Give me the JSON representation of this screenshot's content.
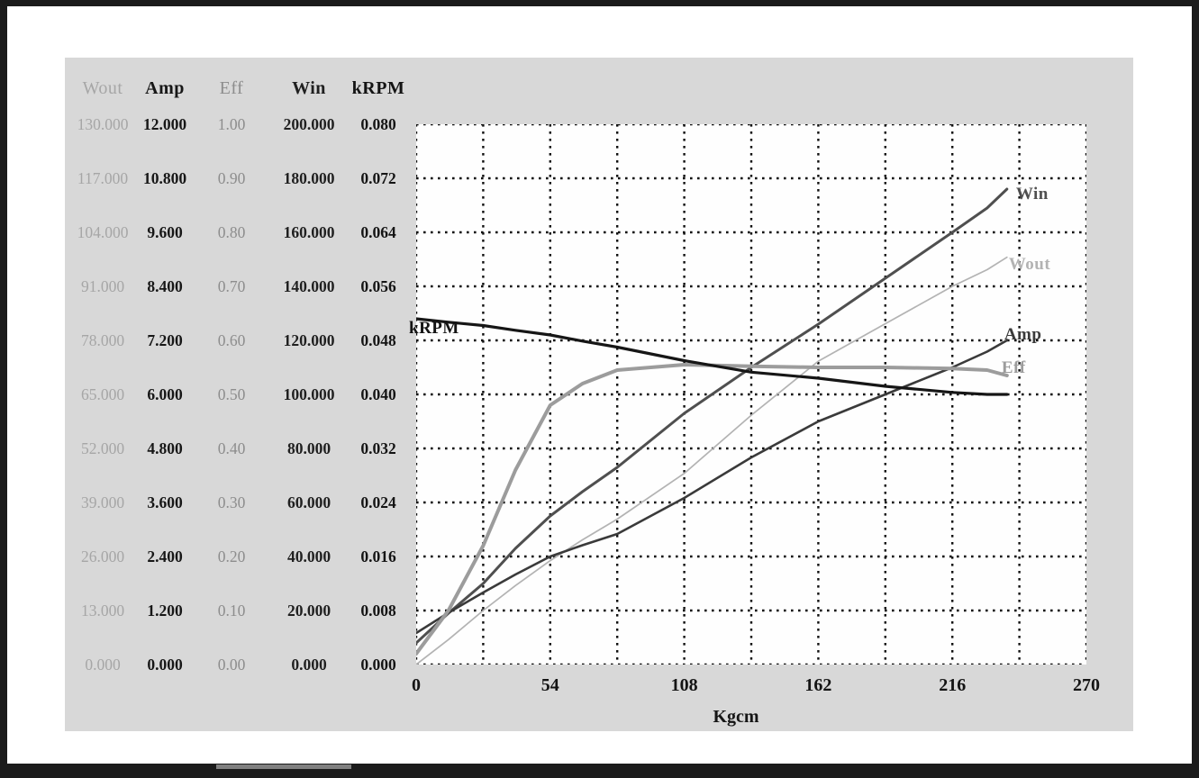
{
  "window": {
    "background": "#ffffff",
    "frame_color": "#1b1b1b",
    "panel_color": "#d8d8d8",
    "plot_background": "#fefefe",
    "grid_color": "#101010"
  },
  "chart_data": {
    "type": "line",
    "title": "",
    "xlabel": "Kgcm",
    "x_range": [
      0,
      270
    ],
    "x_ticks": [
      "0",
      "54",
      "108",
      "162",
      "216",
      "270"
    ],
    "grid": "dotted, 10 x 10 divisions",
    "legend_position": "labels at curve ends",
    "y_axes": [
      {
        "name": "Wout",
        "max": 130,
        "text_color": "#a6a6a6",
        "bold": false,
        "ticks": [
          "130.000",
          "117.000",
          "104.000",
          "91.000",
          "78.000",
          "65.000",
          "52.000",
          "39.000",
          "26.000",
          "13.000",
          "0.000"
        ]
      },
      {
        "name": "Amp",
        "max": 12,
        "text_color": "#171717",
        "bold": true,
        "ticks": [
          "12.000",
          "10.800",
          "9.600",
          "8.400",
          "7.200",
          "6.000",
          "4.800",
          "3.600",
          "2.400",
          "1.200",
          "0.000"
        ]
      },
      {
        "name": "Eff",
        "max": 1.0,
        "text_color": "#8d8d8d",
        "bold": false,
        "ticks": [
          "1.00",
          "0.90",
          "0.80",
          "0.70",
          "0.60",
          "0.50",
          "0.40",
          "0.30",
          "0.20",
          "0.10",
          "0.00"
        ]
      },
      {
        "name": "Win",
        "max": 200,
        "text_color": "#202020",
        "bold": true,
        "ticks": [
          "200.000",
          "180.000",
          "160.000",
          "140.000",
          "120.000",
          "100.000",
          "80.000",
          "60.000",
          "40.000",
          "20.000",
          "0.000"
        ]
      },
      {
        "name": "kRPM",
        "max": 0.08,
        "text_color": "#141414",
        "bold": true,
        "ticks": [
          "0.080",
          "0.072",
          "0.064",
          "0.056",
          "0.048",
          "0.040",
          "0.032",
          "0.024",
          "0.016",
          "0.008",
          "0.000"
        ]
      }
    ],
    "x": [
      0,
      13,
      27,
      40,
      54,
      67,
      81,
      108,
      135,
      162,
      189,
      216,
      230,
      238
    ],
    "series": [
      {
        "name": "Win",
        "axis": "Win",
        "color": "#4f4f4f",
        "width": 3.0,
        "values": [
          8,
          19,
          30,
          43,
          55,
          64,
          73,
          93,
          110,
          126,
          143,
          160,
          169,
          176
        ]
      },
      {
        "name": "Wout",
        "axis": "Wout",
        "color": "#b3b3b3",
        "width": 1.7,
        "values": [
          0,
          6,
          13,
          19,
          25,
          30,
          35,
          46,
          60,
          73,
          82,
          91,
          95,
          98
        ]
      },
      {
        "name": "Amp",
        "axis": "Amp",
        "color": "#3a3a3a",
        "width": 2.6,
        "values": [
          0.7,
          1.15,
          1.6,
          2.0,
          2.4,
          2.65,
          2.9,
          3.7,
          4.6,
          5.4,
          6.0,
          6.6,
          6.95,
          7.2
        ]
      },
      {
        "name": "Eff",
        "axis": "Eff",
        "color": "#9c9c9c",
        "width": 4.0,
        "values": [
          0.02,
          0.1,
          0.22,
          0.36,
          0.48,
          0.52,
          0.545,
          0.555,
          0.552,
          0.55,
          0.55,
          0.548,
          0.545,
          0.535
        ]
      },
      {
        "name": "kRPM",
        "axis": "kRPM",
        "color": "#161616",
        "width": 3.2,
        "values": [
          0.0512,
          0.0507,
          0.0502,
          0.0495,
          0.0488,
          0.0479,
          0.047,
          0.045,
          0.0433,
          0.0424,
          0.0412,
          0.0403,
          0.04,
          0.04
        ]
      }
    ],
    "curve_labels": [
      {
        "text": "kRPM",
        "series": "kRPM",
        "anchor": "start",
        "color": "#141414"
      },
      {
        "text": "Win",
        "series": "Win",
        "anchor": "end",
        "color": "#4f4f4f"
      },
      {
        "text": "Wout",
        "series": "Wout",
        "anchor": "end",
        "color": "#b3b3b3"
      },
      {
        "text": "Amp",
        "series": "Amp",
        "anchor": "end",
        "color": "#3a3a3a"
      },
      {
        "text": "Eff",
        "series": "Eff",
        "anchor": "end",
        "color": "#9c9c9c"
      }
    ]
  }
}
